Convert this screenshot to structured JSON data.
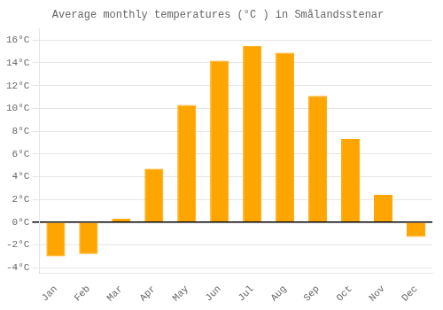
{
  "chart_data": {
    "type": "bar",
    "title": "Average monthly temperatures (°C ) in Smålandsstenar",
    "categories": [
      "Jan",
      "Feb",
      "Mar",
      "Apr",
      "May",
      "Jun",
      "Jul",
      "Aug",
      "Sep",
      "Oct",
      "Nov",
      "Dec"
    ],
    "values": [
      -3.0,
      -2.8,
      0.3,
      4.7,
      10.3,
      14.2,
      15.5,
      14.9,
      11.1,
      7.3,
      2.4,
      -1.3
    ],
    "color": "#FFA500",
    "ylim": [
      -4.5,
      17.0
    ],
    "yticks": [
      {
        "value": -4,
        "label": "-4°C"
      },
      {
        "value": -2,
        "label": "-2°C"
      },
      {
        "value": 0,
        "label": "0°C"
      },
      {
        "value": 2,
        "label": "2°C"
      },
      {
        "value": 4,
        "label": "4°C"
      },
      {
        "value": 6,
        "label": "6°C"
      },
      {
        "value": 8,
        "label": "8°C"
      },
      {
        "value": 10,
        "label": "10°C"
      },
      {
        "value": 12,
        "label": "12°C"
      },
      {
        "value": 14,
        "label": "14°C"
      },
      {
        "value": 16,
        "label": "16°C"
      }
    ],
    "grid": true
  }
}
